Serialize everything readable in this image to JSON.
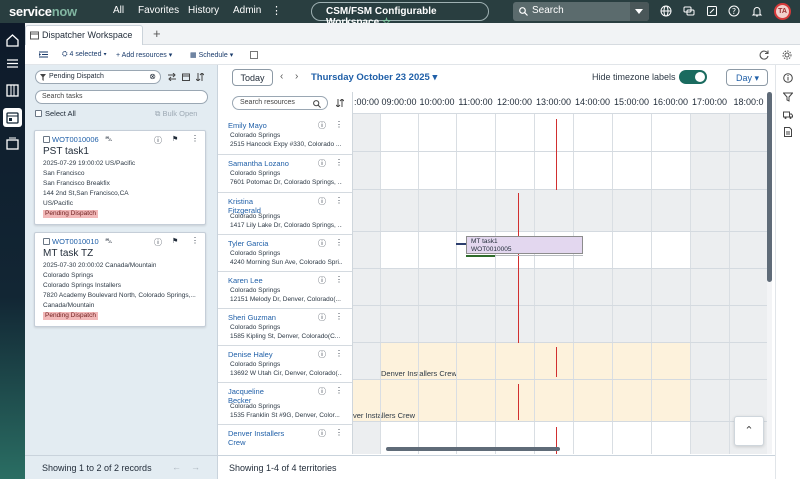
{
  "topbar": {
    "logo_main": "service",
    "logo_accent": "now",
    "nav": [
      "All",
      "Favorites",
      "History",
      "Admin"
    ],
    "workspace": "CSM/FSM Configurable Workspace",
    "search_label": "Search",
    "avatar_initials": "TA"
  },
  "tab": {
    "title": "Dispatcher Workspace",
    "add": "+"
  },
  "toolbar": {
    "selected": "4 selected",
    "add_resources": "Add resources",
    "schedule": "Schedule"
  },
  "left": {
    "filter_value": "Pending Dispatch",
    "search_placeholder": "Search tasks",
    "select_all": "Select All",
    "bulk_open": "Bulk Open",
    "cards": [
      {
        "number": "WOT0010006",
        "title": "PST task1",
        "lines": [
          "2025-07-29 19:00:02 US/Pacific",
          "San Francisco",
          "San Francisco Breakfix",
          "144 2nd St,San Francisco,CA",
          "US/Pacific"
        ],
        "status": "Pending Dispatch"
      },
      {
        "number": "WOT0010010",
        "title": "MT task TZ",
        "lines": [
          "2025-07-30 20:00:02 Canada/Mountain",
          "Colorado Springs",
          "Colorado Springs Installers",
          "7820 Academy Boulevard North, Colorado Springs,...",
          "Canada/Mountain"
        ],
        "status": "Pending Dispatch"
      }
    ],
    "footer": "Showing 1 to 2 of 2 records"
  },
  "main": {
    "today": "Today",
    "date": "Thursday October 23 2025",
    "hide_tz": "Hide timezone labels",
    "view": "Day",
    "search_resources": "Search resources",
    "hours": [
      ":00:00",
      "09:00:00",
      "10:00:00",
      "11:00:00",
      "12:00:00",
      "13:00:00",
      "14:00:00",
      "15:00:00",
      "16:00:00",
      "17:00:00",
      "18:00:0"
    ],
    "resources": [
      {
        "name": "Emily Mayo",
        "city": "Colorado Springs",
        "addr": "2515 Hancock Expy #330, Colorado ..."
      },
      {
        "name": "Samantha Lozano",
        "city": "Colorado Springs",
        "addr": "7601 Potomac Dr, Colorado Springs, ..."
      },
      {
        "name": "Kristina Fitzgerald",
        "city": "Colorado Springs",
        "addr": "1417 Lily Lake Dr, Colorado Springs, ..."
      },
      {
        "name": "Tyler Garcia",
        "city": "Colorado Springs",
        "addr": "4240 Morning Sun Ave, Colorado Spri..."
      },
      {
        "name": "Karen Lee",
        "city": "Colorado Springs",
        "addr": "12151 Melody Dr, Denver, Colorado(..."
      },
      {
        "name": "Sheri Guzman",
        "city": "Colorado Springs",
        "addr": "1585 Kipling St, Denver, Colorado(C..."
      },
      {
        "name": "Denise Haley",
        "city": "Colorado Springs",
        "addr": "13692 W Utah Cir, Denver, Colorado(..."
      },
      {
        "name": "Jacqueline Becker",
        "city": "Colorado Springs",
        "addr": "1535 Franklin St #9G, Denver, Color..."
      },
      {
        "name": "Denver Installers Crew",
        "city": "",
        "addr": ""
      }
    ],
    "task_block": {
      "title": "MT task1",
      "number": "WOT0010005"
    },
    "crew_label_1": "Denver Installers Crew",
    "crew_label_2": "ver Installers Crew",
    "footer": "Showing 1-4 of 4 territories"
  }
}
